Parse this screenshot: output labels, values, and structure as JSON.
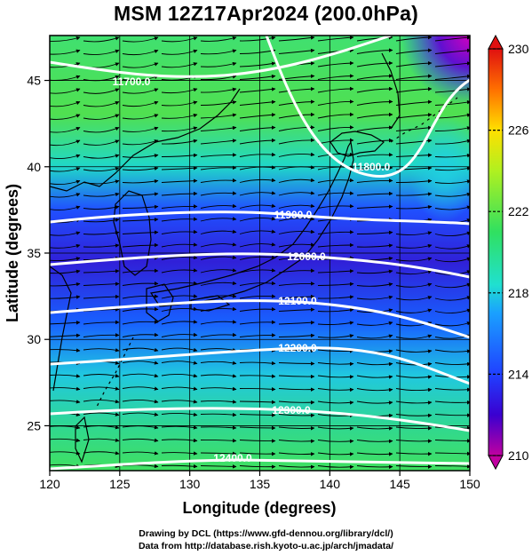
{
  "title": "MSM 12Z17Apr2024 (200.0hPa)",
  "credits": {
    "line1": "Drawing by DCL (https://www.gfd-dennou.org/library/dcl/)",
    "line2": "Data from http://database.rish.kyoto-u.ac.jp/arch/jmadata/"
  },
  "map": {
    "xlabel": "Longitude (degrees)",
    "ylabel": "Latitude  (degrees)",
    "lon_range": [
      120,
      150
    ],
    "lat_range": [
      22.4,
      47.6
    ],
    "lon_ticks": [
      "120",
      "125",
      "130",
      "135",
      "140",
      "145",
      "150"
    ],
    "lat_ticks": [
      "25",
      "30",
      "35",
      "40",
      "45"
    ],
    "grid": true,
    "contours": [
      {
        "label": "11900.0"
      },
      {
        "label": "12000.0"
      },
      {
        "label": "12100.0"
      },
      {
        "label": "12200.0"
      },
      {
        "label": "12300.0"
      },
      {
        "label": "12400.0"
      }
    ],
    "contour_labels_partial": [
      "11800.0",
      "11700.0"
    ]
  },
  "colorbar": {
    "min": 210,
    "max": 230,
    "tick_labels": [
      "230",
      "226",
      "222",
      "218",
      "214",
      "210"
    ],
    "colors": [
      "#c000a0",
      "#3a00d0",
      "#2040ff",
      "#1aa0ff",
      "#20e0d0",
      "#30e060",
      "#b0f020",
      "#ffe000",
      "#ff7000",
      "#e01010"
    ]
  }
}
